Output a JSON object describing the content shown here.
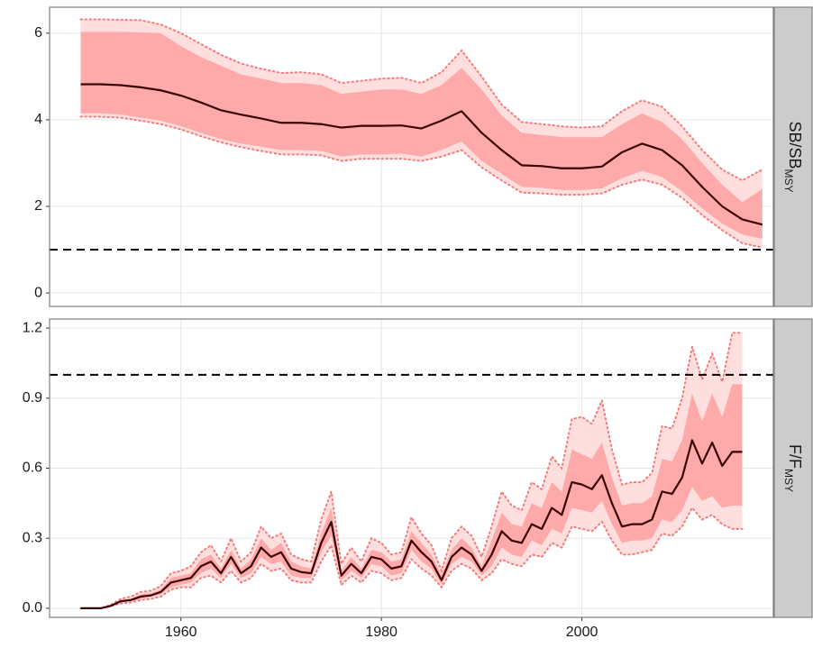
{
  "chart_data": [
    {
      "type": "line",
      "strip_label": "SB/SB",
      "strip_subscript": "MSY",
      "x": [
        1950,
        1952,
        1954,
        1956,
        1958,
        1960,
        1962,
        1964,
        1966,
        1968,
        1970,
        1972,
        1974,
        1976,
        1978,
        1980,
        1982,
        1984,
        1986,
        1988,
        1990,
        1992,
        1994,
        1996,
        1998,
        2000,
        2002,
        2004,
        2006,
        2008,
        2010,
        2012,
        2014,
        2016,
        2018
      ],
      "values": [
        4.82,
        4.82,
        4.8,
        4.75,
        4.68,
        4.56,
        4.4,
        4.22,
        4.12,
        4.03,
        3.93,
        3.93,
        3.9,
        3.82,
        3.86,
        3.86,
        3.87,
        3.8,
        3.98,
        4.2,
        3.7,
        3.3,
        2.95,
        2.93,
        2.88,
        2.88,
        2.92,
        3.25,
        3.45,
        3.3,
        2.95,
        2.45,
        2.0,
        1.7,
        1.58
      ],
      "color": "#3a0000",
      "bands": [
        {
          "low": [
            4.07,
            4.07,
            4.05,
            3.98,
            3.9,
            3.78,
            3.62,
            3.48,
            3.37,
            3.28,
            3.2,
            3.2,
            3.18,
            3.05,
            3.1,
            3.1,
            3.1,
            3.05,
            3.15,
            3.3,
            2.9,
            2.6,
            2.32,
            2.3,
            2.27,
            2.27,
            2.3,
            2.5,
            2.62,
            2.5,
            2.2,
            1.8,
            1.45,
            1.15,
            1.05
          ],
          "high": [
            6.32,
            6.32,
            6.31,
            6.3,
            6.2,
            6.0,
            5.75,
            5.5,
            5.3,
            5.18,
            5.08,
            5.1,
            5.05,
            4.85,
            4.9,
            4.95,
            4.97,
            4.85,
            5.1,
            5.6,
            5.0,
            4.35,
            3.95,
            3.9,
            3.85,
            3.82,
            3.85,
            4.2,
            4.45,
            4.3,
            3.85,
            3.3,
            2.85,
            2.6,
            2.85
          ],
          "color": "#ffdede",
          "edge_color": "#f77a7a"
        },
        {
          "low": [
            4.15,
            4.15,
            4.12,
            4.05,
            3.98,
            3.85,
            3.7,
            3.55,
            3.45,
            3.38,
            3.3,
            3.3,
            3.28,
            3.15,
            3.2,
            3.2,
            3.22,
            3.15,
            3.3,
            3.5,
            3.05,
            2.75,
            2.45,
            2.43,
            2.38,
            2.38,
            2.42,
            2.65,
            2.82,
            2.68,
            2.35,
            1.95,
            1.6,
            1.35,
            1.25
          ],
          "high": [
            6.03,
            6.03,
            6.03,
            6.02,
            6.0,
            5.7,
            5.45,
            5.25,
            5.05,
            4.95,
            4.85,
            4.85,
            4.8,
            4.6,
            4.65,
            4.7,
            4.7,
            4.6,
            4.8,
            5.2,
            4.7,
            4.1,
            3.7,
            3.65,
            3.6,
            3.6,
            3.6,
            3.9,
            4.15,
            3.95,
            3.55,
            3.0,
            2.5,
            2.1,
            2.4
          ],
          "color": "#ffaaaa"
        }
      ],
      "ref_line": 1,
      "xlim": [
        1946.9,
        2019.1
      ],
      "xticks": [
        1960,
        1980,
        2000
      ],
      "ylim": [
        -0.31,
        6.6
      ],
      "yticks": [
        0,
        2,
        4,
        6
      ],
      "grid": true
    },
    {
      "type": "line",
      "strip_label": "F/F",
      "strip_subscript": "MSY",
      "x": [
        1950,
        1951,
        1952,
        1953,
        1954,
        1955,
        1956,
        1957,
        1958,
        1959,
        1960,
        1961,
        1962,
        1963,
        1964,
        1965,
        1966,
        1967,
        1968,
        1969,
        1970,
        1971,
        1972,
        1973,
        1974,
        1975,
        1976,
        1977,
        1978,
        1979,
        1980,
        1981,
        1982,
        1983,
        1984,
        1985,
        1986,
        1987,
        1988,
        1989,
        1990,
        1991,
        1992,
        1993,
        1994,
        1995,
        1996,
        1997,
        1998,
        1999,
        2000,
        2001,
        2002,
        2003,
        2004,
        2005,
        2006,
        2007,
        2008,
        2009,
        2010,
        2011,
        2012,
        2013,
        2014,
        2015,
        2016
      ],
      "values": [
        0,
        0,
        0,
        0.01,
        0.03,
        0.035,
        0.05,
        0.055,
        0.07,
        0.11,
        0.12,
        0.13,
        0.18,
        0.2,
        0.15,
        0.22,
        0.15,
        0.18,
        0.26,
        0.22,
        0.24,
        0.17,
        0.155,
        0.15,
        0.28,
        0.37,
        0.14,
        0.19,
        0.15,
        0.22,
        0.21,
        0.17,
        0.18,
        0.29,
        0.24,
        0.2,
        0.12,
        0.22,
        0.26,
        0.23,
        0.16,
        0.23,
        0.33,
        0.29,
        0.28,
        0.36,
        0.34,
        0.43,
        0.4,
        0.54,
        0.53,
        0.51,
        0.57,
        0.45,
        0.35,
        0.36,
        0.36,
        0.38,
        0.5,
        0.49,
        0.56,
        0.72,
        0.62,
        0.71,
        0.61,
        0.67,
        0.67
      ],
      "color": "#3a0000",
      "bands": [
        {
          "low": [
            0,
            0,
            0,
            0.01,
            0.02,
            0.025,
            0.035,
            0.04,
            0.05,
            0.08,
            0.09,
            0.09,
            0.13,
            0.14,
            0.11,
            0.16,
            0.11,
            0.13,
            0.19,
            0.16,
            0.17,
            0.12,
            0.11,
            0.11,
            0.2,
            0.27,
            0.1,
            0.14,
            0.11,
            0.16,
            0.15,
            0.12,
            0.13,
            0.21,
            0.17,
            0.14,
            0.09,
            0.16,
            0.19,
            0.17,
            0.12,
            0.15,
            0.21,
            0.19,
            0.18,
            0.23,
            0.22,
            0.28,
            0.26,
            0.35,
            0.34,
            0.33,
            0.37,
            0.29,
            0.23,
            0.23,
            0.24,
            0.25,
            0.32,
            0.31,
            0.35,
            0.43,
            0.38,
            0.4,
            0.36,
            0.34,
            0.34
          ],
          "high": [
            0,
            0,
            0,
            0.015,
            0.04,
            0.05,
            0.07,
            0.075,
            0.095,
            0.15,
            0.16,
            0.18,
            0.24,
            0.27,
            0.2,
            0.3,
            0.2,
            0.24,
            0.35,
            0.3,
            0.32,
            0.23,
            0.21,
            0.2,
            0.38,
            0.5,
            0.19,
            0.26,
            0.2,
            0.3,
            0.28,
            0.23,
            0.24,
            0.39,
            0.32,
            0.27,
            0.16,
            0.3,
            0.35,
            0.31,
            0.22,
            0.35,
            0.5,
            0.44,
            0.42,
            0.54,
            0.51,
            0.65,
            0.6,
            0.81,
            0.82,
            0.79,
            0.89,
            0.68,
            0.53,
            0.54,
            0.54,
            0.58,
            0.78,
            0.77,
            0.9,
            1.12,
            0.98,
            1.09,
            0.97,
            1.18,
            1.18
          ],
          "color": "#ffdede",
          "edge_color": "#f77a7a"
        },
        {
          "low": [
            0,
            0,
            0,
            0.01,
            0.025,
            0.03,
            0.04,
            0.05,
            0.06,
            0.09,
            0.1,
            0.11,
            0.15,
            0.17,
            0.13,
            0.19,
            0.13,
            0.15,
            0.22,
            0.19,
            0.2,
            0.14,
            0.13,
            0.13,
            0.24,
            0.31,
            0.12,
            0.16,
            0.13,
            0.19,
            0.18,
            0.14,
            0.15,
            0.25,
            0.2,
            0.17,
            0.1,
            0.19,
            0.22,
            0.2,
            0.14,
            0.18,
            0.26,
            0.23,
            0.22,
            0.29,
            0.27,
            0.34,
            0.32,
            0.43,
            0.42,
            0.41,
            0.46,
            0.36,
            0.28,
            0.29,
            0.29,
            0.3,
            0.38,
            0.37,
            0.42,
            0.52,
            0.46,
            0.48,
            0.43,
            0.44,
            0.44
          ],
          "high": [
            0,
            0,
            0,
            0.01,
            0.035,
            0.04,
            0.06,
            0.065,
            0.08,
            0.13,
            0.14,
            0.15,
            0.21,
            0.23,
            0.17,
            0.25,
            0.17,
            0.21,
            0.3,
            0.25,
            0.28,
            0.2,
            0.18,
            0.17,
            0.32,
            0.43,
            0.16,
            0.22,
            0.17,
            0.25,
            0.24,
            0.2,
            0.21,
            0.33,
            0.28,
            0.23,
            0.14,
            0.25,
            0.3,
            0.26,
            0.18,
            0.29,
            0.41,
            0.36,
            0.35,
            0.45,
            0.43,
            0.54,
            0.5,
            0.68,
            0.66,
            0.64,
            0.71,
            0.56,
            0.44,
            0.45,
            0.45,
            0.48,
            0.64,
            0.63,
            0.72,
            0.92,
            0.8,
            0.92,
            0.82,
            0.96,
            0.96
          ],
          "color": "#ffaaaa"
        }
      ],
      "ref_line": 1,
      "xlim": [
        1946.9,
        2019.1
      ],
      "xticks": [
        1960,
        1980,
        2000
      ],
      "ylim": [
        -0.039,
        1.239
      ],
      "yticks": [
        {
          "value": 0,
          "label": "0.0"
        },
        0.3,
        0.6,
        0.9,
        1.2
      ],
      "grid": true
    }
  ]
}
